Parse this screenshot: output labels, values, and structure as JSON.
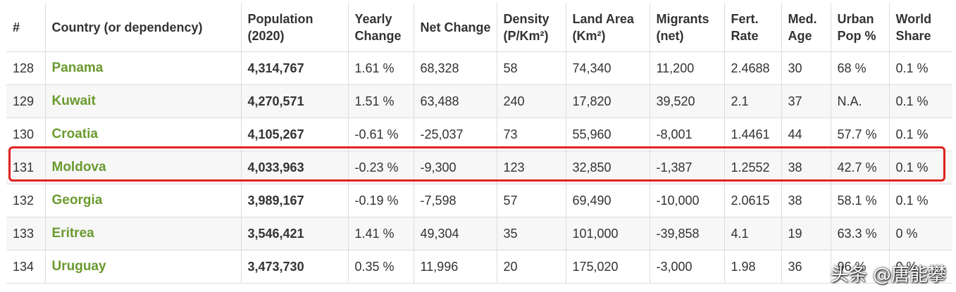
{
  "table": {
    "headers": [
      "#",
      "Country (or dependency)",
      "Population (2020)",
      "Yearly Change",
      "Net Change",
      "Density (P/Km²)",
      "Land Area (Km²)",
      "Migrants (net)",
      "Fert. Rate",
      "Med. Age",
      "Urban Pop %",
      "World Share"
    ],
    "rows": [
      [
        "128",
        "Panama",
        "4,314,767",
        "1.61 %",
        "68,328",
        "58",
        "74,340",
        "11,200",
        "2.4688",
        "30",
        "68 %",
        "0.1 %"
      ],
      [
        "129",
        "Kuwait",
        "4,270,571",
        "1.51 %",
        "63,488",
        "240",
        "17,820",
        "39,520",
        "2.1",
        "37",
        "N.A.",
        "0.1 %"
      ],
      [
        "130",
        "Croatia",
        "4,105,267",
        "-0.61 %",
        "-25,037",
        "73",
        "55,960",
        "-8,001",
        "1.4461",
        "44",
        "57.7 %",
        "0.1 %"
      ],
      [
        "131",
        "Moldova",
        "4,033,963",
        "-0.23 %",
        "-9,300",
        "123",
        "32,850",
        "-1,387",
        "1.2552",
        "38",
        "42.7 %",
        "0.1 %"
      ],
      [
        "132",
        "Georgia",
        "3,989,167",
        "-0.19 %",
        "-7,598",
        "57",
        "69,490",
        "-10,000",
        "2.0615",
        "38",
        "58.1 %",
        "0.1 %"
      ],
      [
        "133",
        "Eritrea",
        "3,546,421",
        "1.41 %",
        "49,304",
        "35",
        "101,000",
        "-39,858",
        "4.1",
        "19",
        "63.3 %",
        "0 %"
      ],
      [
        "134",
        "Uruguay",
        "3,473,730",
        "0.35 %",
        "11,996",
        "20",
        "175,020",
        "-3,000",
        "1.98",
        "36",
        "96 %",
        "0 %"
      ]
    ]
  },
  "highlighted_country": "Moldova",
  "watermark": "头条 @唐能攀",
  "colors": {
    "country_link": "#6a9a2e",
    "highlight_border": "#e0221e",
    "grid": "#dddddd"
  }
}
